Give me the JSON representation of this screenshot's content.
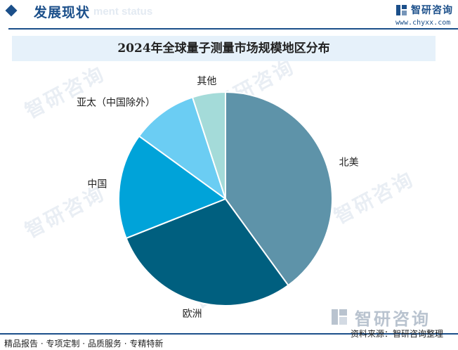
{
  "header": {
    "section_title": "发展现状",
    "section_subtitle": "ment status",
    "brand_name": "智研咨询",
    "brand_url": "www.chyxx.com"
  },
  "watermark_text": "智研咨询",
  "footer": {
    "left_text": "精品报告 · 专项定制 · 品质服务 · 专精特新",
    "source_text": "资料来源：智研咨询整理",
    "brand_name": "智研咨询"
  },
  "colors": {
    "brand": "#1b4f8a",
    "title_bg": "#e6f1fa"
  },
  "chart_data": {
    "type": "pie",
    "title": "2024年全球量子测量市场规模地区分布",
    "start_angle_deg": 0,
    "direction": "clockwise",
    "slices": [
      {
        "label": "北美",
        "value": 40,
        "color": "#5e93a9"
      },
      {
        "label": "欧洲",
        "value": 29,
        "color": "#005f7f"
      },
      {
        "label": "中国",
        "value": 16,
        "color": "#00a3d9"
      },
      {
        "label": "亚太（中国除外）",
        "value": 10,
        "color": "#6bcdf3"
      },
      {
        "label": "其他",
        "value": 5,
        "color": "#a4dbd9"
      }
    ]
  }
}
